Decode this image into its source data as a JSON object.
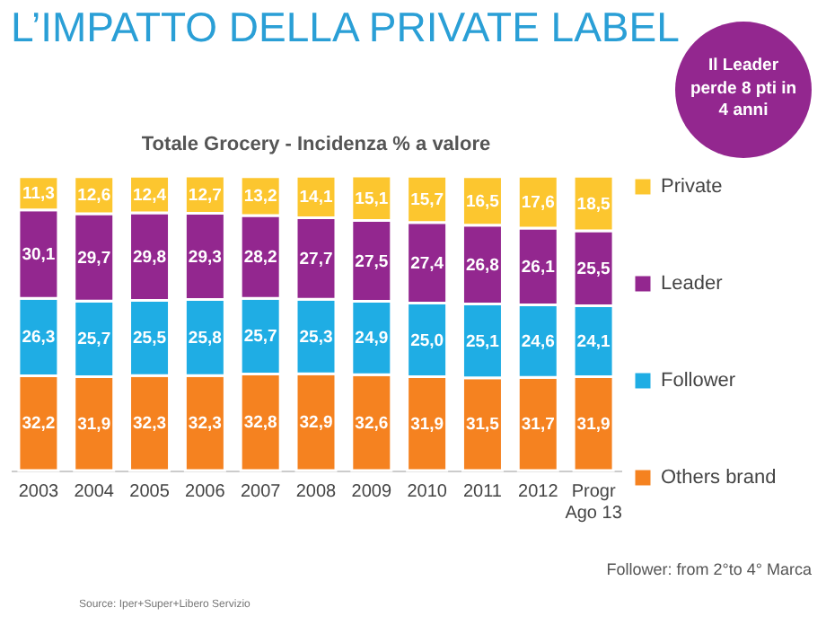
{
  "chart_data": {
    "type": "bar",
    "stacked": true,
    "title": "L’IMPATTO DELLA PRIVATE LABEL",
    "subtitle": "Totale Grocery - Incidenza % a valore",
    "categories": [
      "2003",
      "2004",
      "2005",
      "2006",
      "2007",
      "2008",
      "2009",
      "2010",
      "2011",
      "2012",
      "Progr\nAgo 13"
    ],
    "series": [
      {
        "name": "Others brand",
        "color": "#f58220",
        "values": [
          32.2,
          31.9,
          32.3,
          32.3,
          32.8,
          32.9,
          32.6,
          31.9,
          31.5,
          31.7,
          31.9
        ],
        "value_labels": [
          "32,2",
          "31,9",
          "32,3",
          "32,3",
          "32,8",
          "32,9",
          "32,6",
          "31,9",
          "31,5",
          "31,7",
          "31,9"
        ]
      },
      {
        "name": "Follower",
        "color": "#1fade4",
        "values": [
          26.3,
          25.7,
          25.5,
          25.8,
          25.7,
          25.3,
          24.9,
          25.0,
          25.1,
          24.6,
          24.1
        ],
        "value_labels": [
          "26,3",
          "25,7",
          "25,5",
          "25,8",
          "25,7",
          "25,3",
          "24,9",
          "25,0",
          "25,1",
          "24,6",
          "24,1"
        ]
      },
      {
        "name": "Leader",
        "color": "#93278f",
        "values": [
          30.1,
          29.7,
          29.8,
          29.3,
          28.2,
          27.7,
          27.5,
          27.4,
          26.8,
          26.1,
          25.5
        ],
        "value_labels": [
          "30,1",
          "29,7",
          "29,8",
          "29,3",
          "28,2",
          "27,7",
          "27,5",
          "27,4",
          "26,8",
          "26,1",
          "25,5"
        ]
      },
      {
        "name": "Private",
        "color": "#fcc62f",
        "values": [
          11.3,
          12.6,
          12.4,
          12.7,
          13.2,
          14.1,
          15.1,
          15.7,
          16.5,
          17.6,
          18.5
        ],
        "value_labels": [
          "11,3",
          "12,6",
          "12,4",
          "12,7",
          "13,2",
          "14,1",
          "15,1",
          "15,7",
          "16,5",
          "17,6",
          "18,5"
        ]
      }
    ],
    "legend": "right",
    "annotations": [
      "Il Leader perde 8 pti in 4 anni",
      "Follower:  from 2°to 4° Marca",
      "Source: Iper+Super+Libero Servizio"
    ]
  }
}
